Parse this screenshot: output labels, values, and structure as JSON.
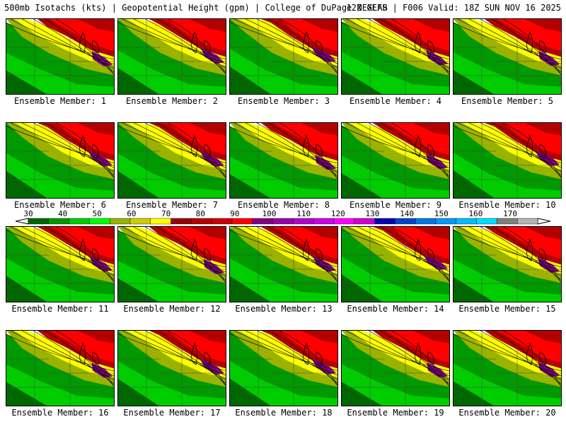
{
  "header": {
    "left": "500mb Isotachs (kts) | Geopotential Height (gpm) | College of DuPage NEXLAB",
    "right": "12Z GEFS | F006 Valid: 18Z SUN NOV 16 2025"
  },
  "panels": [
    {
      "label": "Ensemble Member: 1"
    },
    {
      "label": "Ensemble Member: 2"
    },
    {
      "label": "Ensemble Member: 3"
    },
    {
      "label": "Ensemble Member: 4"
    },
    {
      "label": "Ensemble Member: 5"
    },
    {
      "label": "Ensemble Member: 6"
    },
    {
      "label": "Ensemble Member: 7"
    },
    {
      "label": "Ensemble Member: 8"
    },
    {
      "label": "Ensemble Member: 9"
    },
    {
      "label": "Ensemble Member: 10"
    },
    {
      "label": "Ensemble Member: 11"
    },
    {
      "label": "Ensemble Member: 12"
    },
    {
      "label": "Ensemble Member: 13"
    },
    {
      "label": "Ensemble Member: 14"
    },
    {
      "label": "Ensemble Member: 15"
    },
    {
      "label": "Ensemble Member: 16"
    },
    {
      "label": "Ensemble Member: 17"
    },
    {
      "label": "Ensemble Member: 18"
    },
    {
      "label": "Ensemble Member: 19"
    },
    {
      "label": "Ensemble Member: 20"
    }
  ],
  "colorbar": {
    "labels": [
      "30",
      "40",
      "50",
      "60",
      "70",
      "80",
      "90",
      "100",
      "110",
      "120",
      "130",
      "140",
      "150",
      "160",
      "170"
    ],
    "colors": [
      "#006600",
      "#009900",
      "#00cc00",
      "#00ff00",
      "#99b300",
      "#cccc00",
      "#ffff00",
      "#990000",
      "#b30000",
      "#cc0000",
      "#ff0000",
      "#800080",
      "#9900aa",
      "#b300cc",
      "#cc00e6",
      "#ff00ff",
      "#cc00cc",
      "#0000b3",
      "#0044cc",
      "#0077e6",
      "#0099ff",
      "#00bbff",
      "#00ddff",
      "#808080",
      "#b3b3b3"
    ]
  },
  "map_colors": {
    "white": "#ffffff",
    "dark_green": "#006600",
    "green": "#009900",
    "bright_green": "#00cc00",
    "olive": "#99b300",
    "yellow": "#ffff00",
    "dark_red": "#b30000",
    "red": "#ff0000",
    "purple": "#800080"
  }
}
